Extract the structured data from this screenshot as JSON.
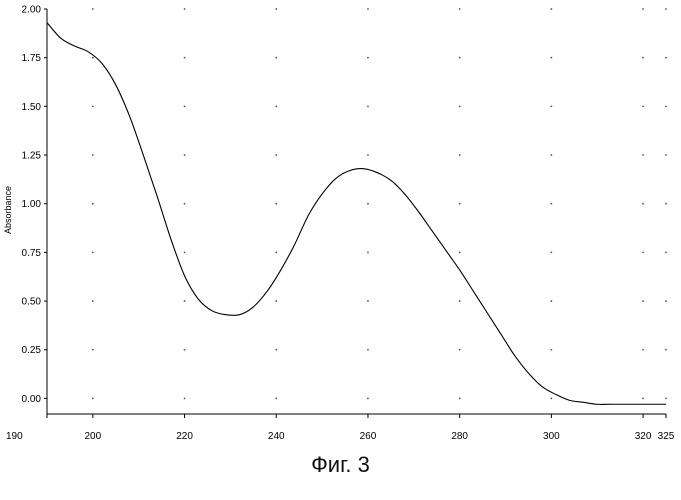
{
  "chart_data": {
    "type": "line",
    "title": "",
    "xlabel": "",
    "ylabel": "Absorbance",
    "xlim": [
      190,
      325
    ],
    "ylim": [
      -0.08,
      2.0
    ],
    "grid": "dotted",
    "x_ticks": [
      190,
      200,
      220,
      240,
      260,
      280,
      300,
      320,
      325
    ],
    "y_ticks": [
      "2.00",
      "1.75",
      "1.50",
      "1.25",
      "1.00",
      "0.75",
      "0.50",
      "0.25",
      "0.00"
    ],
    "series": [
      {
        "x": [
          190,
          193,
          196,
          199,
          202,
          205,
          208,
          211,
          214,
          217,
          220,
          223,
          226,
          229,
          232,
          235,
          238,
          241,
          244,
          247,
          250,
          253,
          256,
          259,
          262,
          265,
          268,
          271,
          274,
          277,
          280,
          283,
          286,
          289,
          292,
          295,
          298,
          301,
          304,
          307,
          310,
          313,
          316,
          319,
          322,
          325
        ],
        "y": [
          1.93,
          1.85,
          1.81,
          1.78,
          1.72,
          1.61,
          1.45,
          1.25,
          1.04,
          0.82,
          0.63,
          0.51,
          0.45,
          0.43,
          0.43,
          0.47,
          0.55,
          0.66,
          0.79,
          0.94,
          1.05,
          1.13,
          1.17,
          1.18,
          1.16,
          1.12,
          1.05,
          0.96,
          0.86,
          0.76,
          0.66,
          0.55,
          0.44,
          0.33,
          0.22,
          0.13,
          0.06,
          0.02,
          -0.01,
          -0.02,
          -0.03,
          -0.03,
          -0.03,
          -0.03,
          -0.03,
          -0.03
        ]
      }
    ]
  },
  "caption": "Фиг. 3"
}
